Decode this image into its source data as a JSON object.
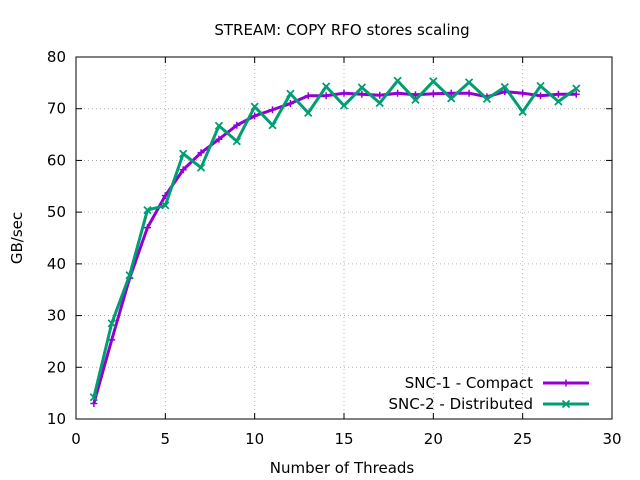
{
  "chart_data": {
    "type": "line",
    "title": "STREAM: COPY RFO stores scaling",
    "xlabel": "Number of Threads",
    "ylabel": "GB/sec",
    "xlim": [
      0,
      30
    ],
    "ylim": [
      10,
      80
    ],
    "xticks": [
      0,
      5,
      10,
      15,
      20,
      25,
      30
    ],
    "yticks": [
      10,
      20,
      30,
      40,
      50,
      60,
      70,
      80
    ],
    "x_tick_labels": [
      "0",
      "5",
      "10",
      "15",
      "20",
      "25",
      "30"
    ],
    "y_tick_labels": [
      "10",
      "20",
      "30",
      "40",
      "50",
      "60",
      "70",
      "80"
    ],
    "grid": true,
    "legend_position": "bottom-right",
    "x": [
      1,
      2,
      3,
      4,
      5,
      6,
      7,
      8,
      9,
      10,
      11,
      12,
      13,
      14,
      15,
      16,
      17,
      18,
      19,
      20,
      21,
      22,
      23,
      24,
      25,
      26,
      27,
      28
    ],
    "series": [
      {
        "name": "SNC-1 - Compact",
        "color": "#9400d3",
        "marker": "plus",
        "values": [
          13.0,
          25.3,
          37.2,
          47.0,
          53.2,
          58.2,
          61.5,
          64.1,
          66.8,
          68.6,
          69.8,
          71.0,
          72.5,
          72.5,
          73.0,
          72.8,
          72.6,
          73.0,
          72.7,
          72.9,
          73.0,
          73.0,
          72.3,
          73.3,
          73.0,
          72.5,
          72.8,
          72.8
        ]
      },
      {
        "name": "SNC-2 - Distributed",
        "color": "#009e73",
        "marker": "x",
        "values": [
          14.2,
          28.5,
          37.8,
          50.4,
          51.3,
          61.3,
          58.6,
          66.7,
          63.7,
          70.4,
          66.8,
          72.9,
          69.2,
          74.3,
          70.6,
          74.1,
          71.1,
          75.4,
          71.7,
          75.3,
          72.0,
          75.1,
          71.9,
          74.2,
          69.4,
          74.4,
          71.4,
          73.9
        ]
      }
    ]
  }
}
